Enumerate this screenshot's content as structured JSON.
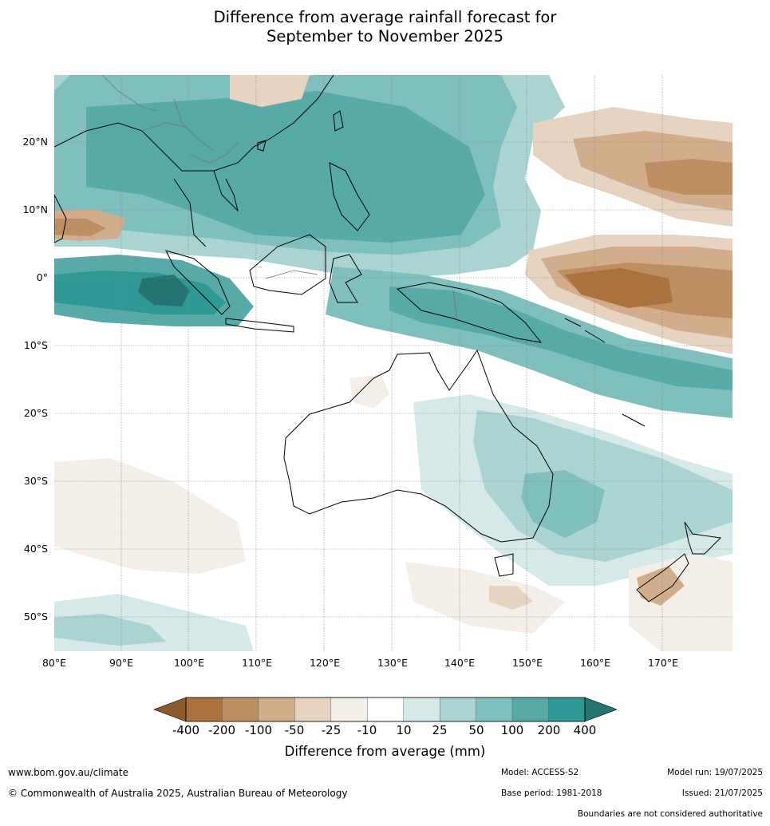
{
  "title": {
    "line1": "Difference from average rainfall forecast for",
    "line2": "September to November 2025"
  },
  "map": {
    "region": "Indian Ocean, Maritime Continent, Australia and Western Pacific",
    "lat_labels": [
      "20°N",
      "10°N",
      "0°",
      "10°S",
      "20°S",
      "30°S",
      "40°S",
      "50°S"
    ],
    "lon_labels": [
      "80°E",
      "90°E",
      "100°E",
      "110°E",
      "120°E",
      "130°E",
      "140°E",
      "150°E",
      "160°E",
      "170°E"
    ],
    "wet_color_scale": [
      "#d5e9e8",
      "#a9d4d2",
      "#7fbfbd",
      "#58aaa9",
      "#2e9895",
      "#237472"
    ],
    "dry_color_scale": [
      "#f3eee8",
      "#e6d3c0",
      "#d2ad8c",
      "#be8e63",
      "#aa733e",
      "#8c5a2b"
    ]
  },
  "legend": {
    "title": "Difference from average (mm)",
    "tick_labels": [
      "-400",
      "-200",
      "-100",
      "-50",
      "-25",
      "-10",
      "10",
      "25",
      "50",
      "100",
      "200",
      "400"
    ],
    "colors": [
      "#aa733e",
      "#be8e63",
      "#d2ad8c",
      "#e6d3c0",
      "#f3eee8",
      "#ffffff",
      "#d5e9e8",
      "#a9d4d2",
      "#7fbfbd",
      "#58aaa9",
      "#2e9895"
    ],
    "low_extend_color": "#8c5a2b",
    "high_extend_color": "#237472"
  },
  "footer": {
    "url": "www.bom.gov.au/climate",
    "copyright": "© Commonwealth of Australia 2025, Australian Bureau of Meteorology",
    "model": "Model: ACCESS-S2",
    "base_period": "Base period: 1981-2018",
    "model_run": "Model run: 19/07/2025",
    "issued": "Issued: 21/07/2025",
    "disclaimer": "Boundaries are not considered authoritative"
  }
}
